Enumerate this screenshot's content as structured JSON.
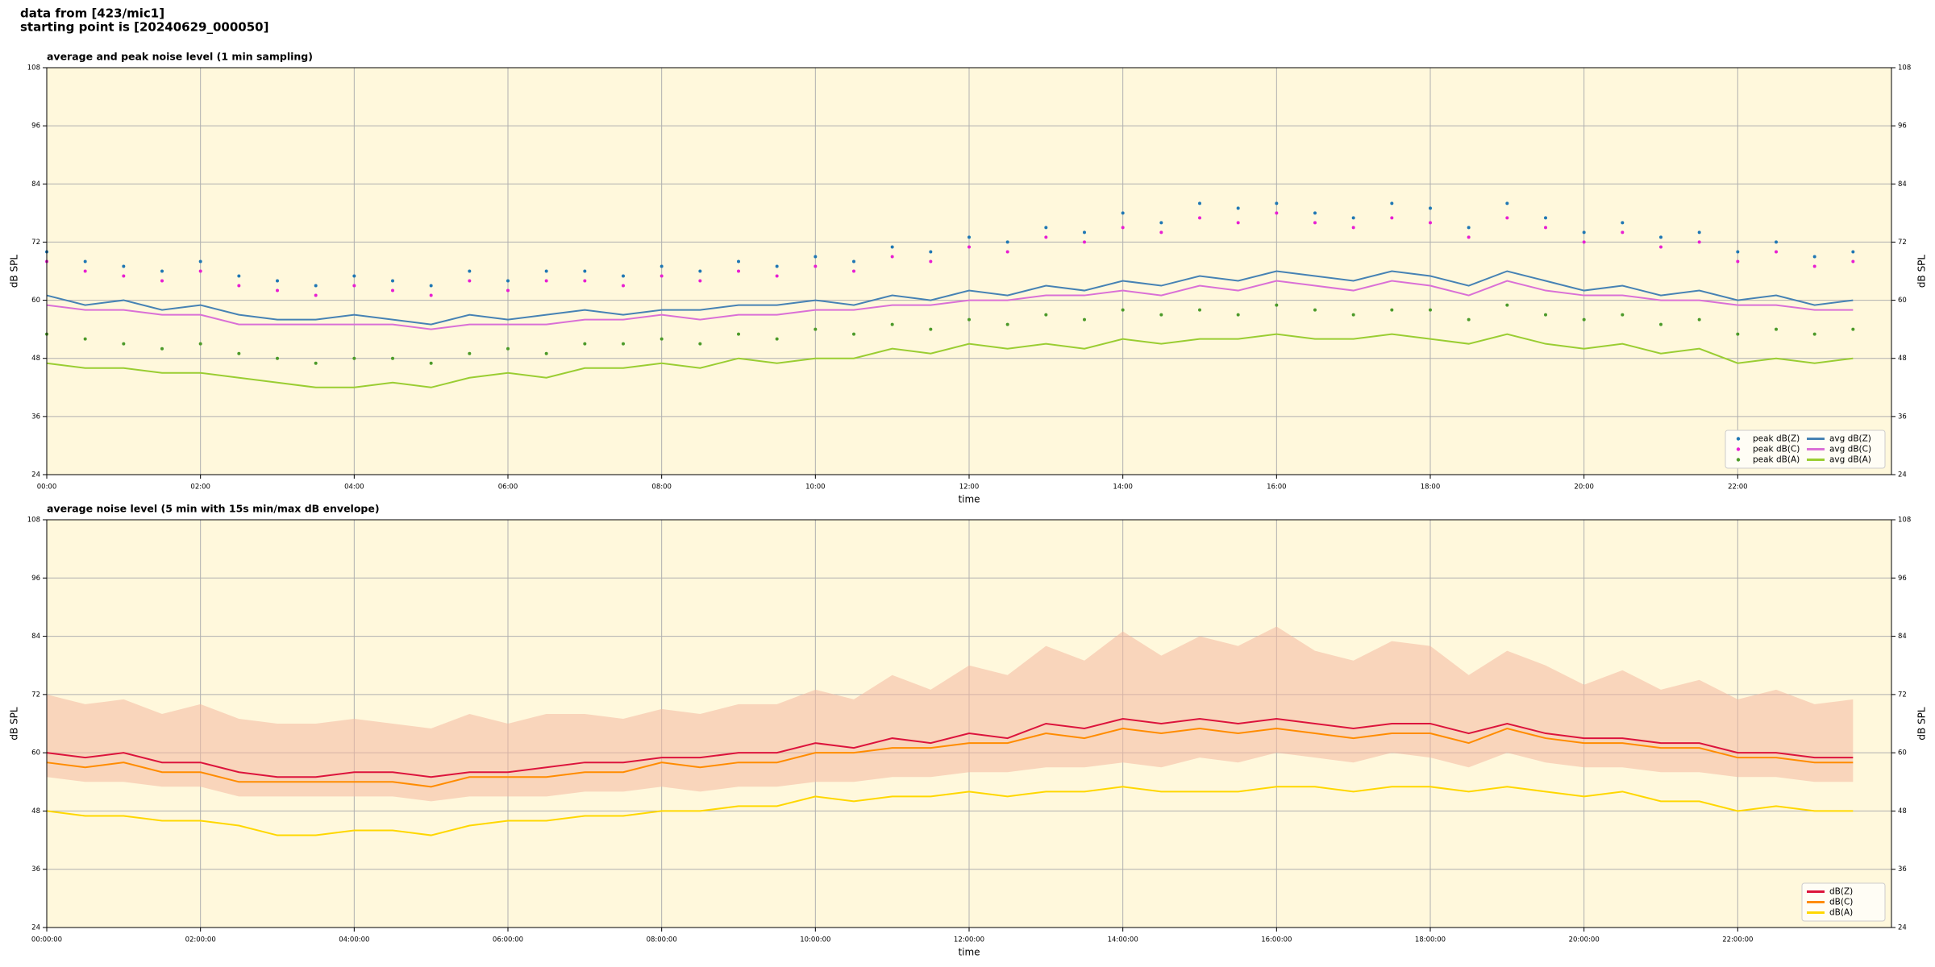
{
  "header": {
    "lines": [
      "data from [423/mic1]",
      "starting point is [20240629_000050]"
    ]
  },
  "chart_data": [
    {
      "type": "line",
      "title": "average and peak noise level (1 min sampling)",
      "xlabel": "time",
      "ylabel": "dB SPL",
      "background": "#fff8dc",
      "grid": true,
      "legend": "lower right",
      "xlim": [
        0,
        24
      ],
      "ylim": [
        24,
        108
      ],
      "xticks": [
        {
          "value": 0,
          "label": "00:00"
        },
        {
          "value": 2,
          "label": "02:00"
        },
        {
          "value": 4,
          "label": "04:00"
        },
        {
          "value": 6,
          "label": "06:00"
        },
        {
          "value": 8,
          "label": "08:00"
        },
        {
          "value": 10,
          "label": "10:00"
        },
        {
          "value": 12,
          "label": "12:00"
        },
        {
          "value": 14,
          "label": "14:00"
        },
        {
          "value": 16,
          "label": "16:00"
        },
        {
          "value": 18,
          "label": "18:00"
        },
        {
          "value": 20,
          "label": "20:00"
        },
        {
          "value": 22,
          "label": "22:00"
        }
      ],
      "yticks": [
        24,
        36,
        48,
        60,
        72,
        84,
        96,
        108
      ],
      "x": [
        0,
        0.5,
        1,
        1.5,
        2,
        2.5,
        3,
        3.5,
        4,
        4.5,
        5,
        5.5,
        6,
        6.5,
        7,
        7.5,
        8,
        8.5,
        9,
        9.5,
        10,
        10.5,
        11,
        11.5,
        12,
        12.5,
        13,
        13.5,
        14,
        14.5,
        15,
        15.5,
        16,
        16.5,
        17,
        17.5,
        18,
        18.5,
        19,
        19.5,
        20,
        20.5,
        21,
        21.5,
        22,
        22.5,
        23,
        23.5
      ],
      "series": [
        {
          "name": "peak dB(Z)",
          "style": "dots",
          "color": "#1f77b4",
          "values": [
            70,
            68,
            67,
            66,
            68,
            65,
            64,
            63,
            65,
            64,
            63,
            66,
            64,
            66,
            66,
            65,
            67,
            66,
            68,
            67,
            69,
            68,
            71,
            70,
            73,
            72,
            75,
            74,
            78,
            76,
            80,
            79,
            80,
            78,
            77,
            80,
            79,
            75,
            80,
            77,
            74,
            76,
            73,
            74,
            70,
            72,
            69,
            70
          ]
        },
        {
          "name": "peak dB(C)",
          "style": "dots",
          "color": "#e81ed2",
          "values": [
            68,
            66,
            65,
            64,
            66,
            63,
            62,
            61,
            63,
            62,
            61,
            64,
            62,
            64,
            64,
            63,
            65,
            64,
            66,
            65,
            67,
            66,
            69,
            68,
            71,
            70,
            73,
            72,
            75,
            74,
            77,
            76,
            78,
            76,
            75,
            77,
            76,
            73,
            77,
            75,
            72,
            74,
            71,
            72,
            68,
            70,
            67,
            68
          ]
        },
        {
          "name": "peak dB(A)",
          "style": "dots",
          "color": "#4c9a2a",
          "values": [
            53,
            52,
            51,
            50,
            51,
            49,
            48,
            47,
            48,
            48,
            47,
            49,
            50,
            49,
            51,
            51,
            52,
            51,
            53,
            52,
            54,
            53,
            55,
            54,
            56,
            55,
            57,
            56,
            58,
            57,
            58,
            57,
            59,
            58,
            57,
            58,
            58,
            56,
            59,
            57,
            56,
            57,
            55,
            56,
            53,
            54,
            53,
            54
          ]
        },
        {
          "name": "avg dB(Z)",
          "style": "line",
          "color": "#4682b4",
          "values": [
            61,
            59,
            60,
            58,
            59,
            57,
            56,
            56,
            57,
            56,
            55,
            57,
            56,
            57,
            58,
            57,
            58,
            58,
            59,
            59,
            60,
            59,
            61,
            60,
            62,
            61,
            63,
            62,
            64,
            63,
            65,
            64,
            66,
            65,
            64,
            66,
            65,
            63,
            66,
            64,
            62,
            63,
            61,
            62,
            60,
            61,
            59,
            60
          ]
        },
        {
          "name": "avg dB(C)",
          "style": "line",
          "color": "#da70d6",
          "values": [
            59,
            58,
            58,
            57,
            57,
            55,
            55,
            55,
            55,
            55,
            54,
            55,
            55,
            55,
            56,
            56,
            57,
            56,
            57,
            57,
            58,
            58,
            59,
            59,
            60,
            60,
            61,
            61,
            62,
            61,
            63,
            62,
            64,
            63,
            62,
            64,
            63,
            61,
            64,
            62,
            61,
            61,
            60,
            60,
            59,
            59,
            58,
            58
          ]
        },
        {
          "name": "avg dB(A)",
          "style": "line",
          "color": "#9acd32",
          "values": [
            47,
            46,
            46,
            45,
            45,
            44,
            43,
            42,
            42,
            43,
            42,
            44,
            45,
            44,
            46,
            46,
            47,
            46,
            48,
            47,
            48,
            48,
            50,
            49,
            51,
            50,
            51,
            50,
            52,
            51,
            52,
            52,
            53,
            52,
            52,
            53,
            52,
            51,
            53,
            51,
            50,
            51,
            49,
            50,
            47,
            48,
            47,
            48
          ]
        }
      ]
    },
    {
      "type": "line",
      "title": "average noise level (5 min with 15s min/max dB envelope)",
      "xlabel": "time",
      "ylabel": "dB SPL",
      "background": "#fff8dc",
      "grid": true,
      "legend": "lower right",
      "xlim": [
        0,
        24
      ],
      "ylim": [
        24,
        108
      ],
      "xticks": [
        {
          "value": 0,
          "label": "00:00:00"
        },
        {
          "value": 2,
          "label": "02:00:00"
        },
        {
          "value": 4,
          "label": "04:00:00"
        },
        {
          "value": 6,
          "label": "06:00:00"
        },
        {
          "value": 8,
          "label": "08:00:00"
        },
        {
          "value": 10,
          "label": "10:00:00"
        },
        {
          "value": 12,
          "label": "12:00:00"
        },
        {
          "value": 14,
          "label": "14:00:00"
        },
        {
          "value": 16,
          "label": "16:00:00"
        },
        {
          "value": 18,
          "label": "18:00:00"
        },
        {
          "value": 20,
          "label": "20:00:00"
        },
        {
          "value": 22,
          "label": "22:00:00"
        }
      ],
      "yticks": [
        24,
        36,
        48,
        60,
        72,
        84,
        96,
        108
      ],
      "x": [
        0,
        0.5,
        1,
        1.5,
        2,
        2.5,
        3,
        3.5,
        4,
        4.5,
        5,
        5.5,
        6,
        6.5,
        7,
        7.5,
        8,
        8.5,
        9,
        9.5,
        10,
        10.5,
        11,
        11.5,
        12,
        12.5,
        13,
        13.5,
        14,
        14.5,
        15,
        15.5,
        16,
        16.5,
        17,
        17.5,
        18,
        18.5,
        19,
        19.5,
        20,
        20.5,
        21,
        21.5,
        22,
        22.5,
        23,
        23.5
      ],
      "envelope": {
        "color": "#f4b8a0",
        "lower": [
          55,
          54,
          54,
          53,
          53,
          51,
          51,
          51,
          51,
          51,
          50,
          51,
          51,
          51,
          52,
          52,
          53,
          52,
          53,
          53,
          54,
          54,
          55,
          55,
          56,
          56,
          57,
          57,
          58,
          57,
          59,
          58,
          60,
          59,
          58,
          60,
          59,
          57,
          60,
          58,
          57,
          57,
          56,
          56,
          55,
          55,
          54,
          54
        ],
        "upper": [
          72,
          70,
          71,
          68,
          70,
          67,
          66,
          66,
          67,
          66,
          65,
          68,
          66,
          68,
          68,
          67,
          69,
          68,
          70,
          70,
          73,
          71,
          76,
          73,
          78,
          76,
          82,
          79,
          85,
          80,
          84,
          82,
          86,
          81,
          79,
          83,
          82,
          76,
          81,
          78,
          74,
          77,
          73,
          75,
          71,
          73,
          70,
          71
        ]
      },
      "series": [
        {
          "name": "dB(Z)",
          "style": "line",
          "color": "#dc143c",
          "values": [
            60,
            59,
            60,
            58,
            58,
            56,
            55,
            55,
            56,
            56,
            55,
            56,
            56,
            57,
            58,
            58,
            59,
            59,
            60,
            60,
            62,
            61,
            63,
            62,
            64,
            63,
            66,
            65,
            67,
            66,
            67,
            66,
            67,
            66,
            65,
            66,
            66,
            64,
            66,
            64,
            63,
            63,
            62,
            62,
            60,
            60,
            59,
            59
          ]
        },
        {
          "name": "dB(C)",
          "style": "line",
          "color": "#ff8c00",
          "values": [
            58,
            57,
            58,
            56,
            56,
            54,
            54,
            54,
            54,
            54,
            53,
            55,
            55,
            55,
            56,
            56,
            58,
            57,
            58,
            58,
            60,
            60,
            61,
            61,
            62,
            62,
            64,
            63,
            65,
            64,
            65,
            64,
            65,
            64,
            63,
            64,
            64,
            62,
            65,
            63,
            62,
            62,
            61,
            61,
            59,
            59,
            58,
            58
          ]
        },
        {
          "name": "dB(A)",
          "style": "line",
          "color": "#ffd700",
          "values": [
            48,
            47,
            47,
            46,
            46,
            45,
            43,
            43,
            44,
            44,
            43,
            45,
            46,
            46,
            47,
            47,
            48,
            48,
            49,
            49,
            51,
            50,
            51,
            51,
            52,
            51,
            52,
            52,
            53,
            52,
            52,
            52,
            53,
            53,
            52,
            53,
            53,
            52,
            53,
            52,
            51,
            52,
            50,
            50,
            48,
            49,
            48,
            48
          ]
        }
      ]
    }
  ]
}
